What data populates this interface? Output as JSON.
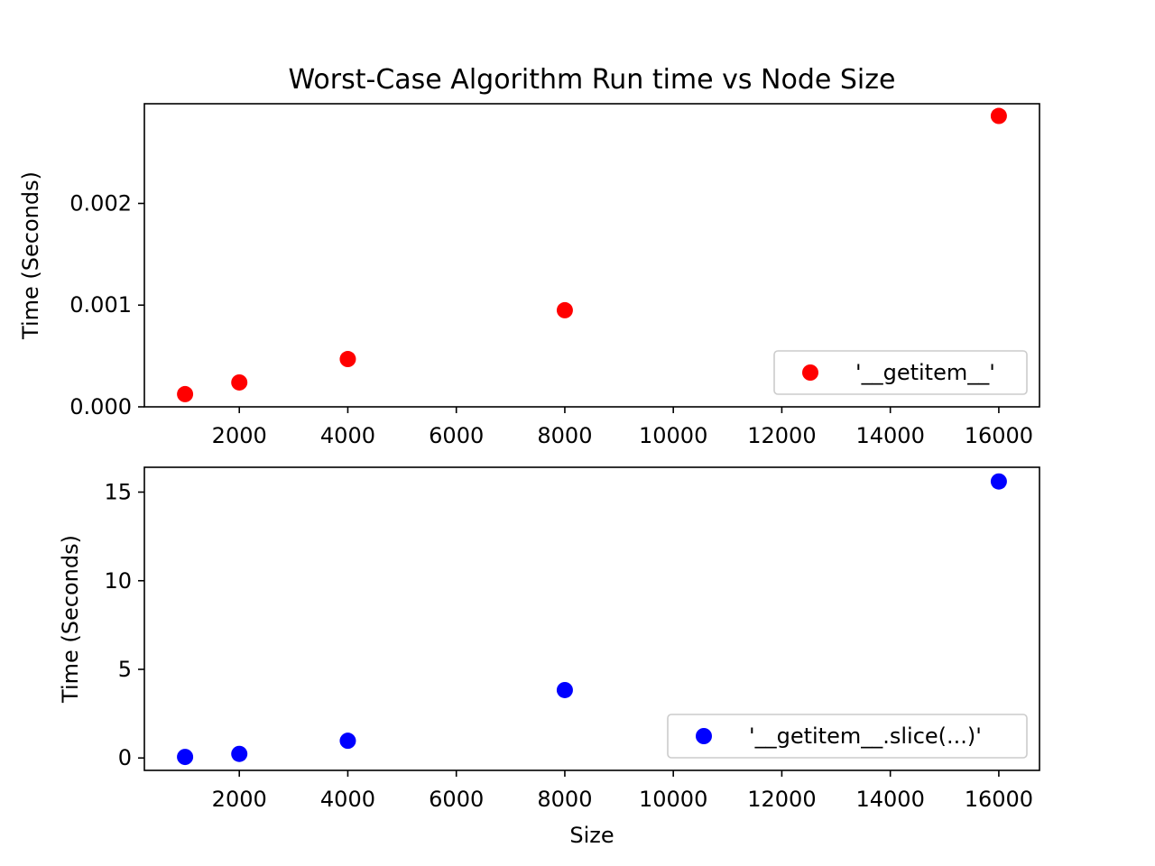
{
  "figure": {
    "title": "Worst-Case Algorithm Run time vs Node Size"
  },
  "chart_data": [
    {
      "type": "scatter",
      "title": "Worst-Case Algorithm Run time vs Node Size",
      "xlabel": "",
      "ylabel": "Time (Seconds)",
      "xlim": [
        250,
        16750
      ],
      "ylim": [
        0,
        0.00298
      ],
      "xticks": [
        2000,
        4000,
        6000,
        8000,
        10000,
        12000,
        14000,
        16000
      ],
      "xtick_labels": [
        "2000",
        "4000",
        "6000",
        "8000",
        "10000",
        "12000",
        "14000",
        "16000"
      ],
      "yticks": [
        0,
        0.001,
        0.002
      ],
      "ytick_labels": [
        "0.000",
        "0.001",
        "0.002"
      ],
      "grid": false,
      "legend_position": "lower-right",
      "series": [
        {
          "name": "'__getitem__'",
          "color": "#ff0000",
          "x": [
            1000,
            2000,
            4000,
            8000,
            16000
          ],
          "y": [
            0.000125,
            0.00024,
            0.00047,
            0.00095,
            0.00286
          ]
        }
      ]
    },
    {
      "type": "scatter",
      "title": "",
      "xlabel": "Size",
      "ylabel": "Time (Seconds)",
      "xlim": [
        250,
        16750
      ],
      "ylim": [
        -0.7,
        16.4
      ],
      "xticks": [
        2000,
        4000,
        6000,
        8000,
        10000,
        12000,
        14000,
        16000
      ],
      "xtick_labels": [
        "2000",
        "4000",
        "6000",
        "8000",
        "10000",
        "12000",
        "14000",
        "16000"
      ],
      "yticks": [
        0,
        5,
        10,
        15
      ],
      "ytick_labels": [
        "0",
        "5",
        "10",
        "15"
      ],
      "grid": false,
      "legend_position": "lower-right",
      "series": [
        {
          "name": "'__getitem__.slice(...)'",
          "color": "#0000ff",
          "x": [
            1000,
            2000,
            4000,
            8000,
            16000
          ],
          "y": [
            0.06,
            0.23,
            0.97,
            3.83,
            15.6
          ]
        }
      ]
    }
  ]
}
